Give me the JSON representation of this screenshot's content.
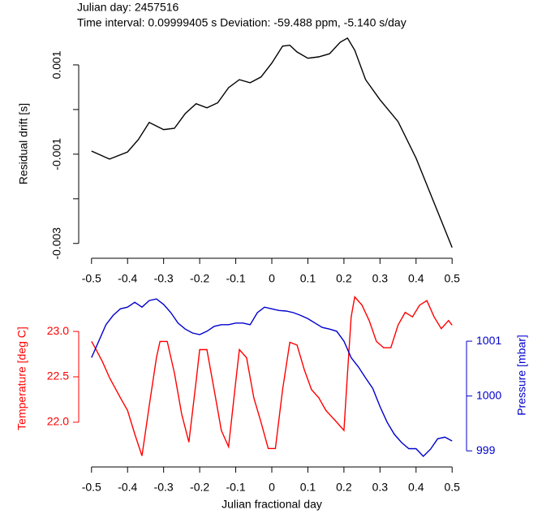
{
  "chart_data": [
    {
      "type": "line",
      "title": "Julian day: 2457516",
      "subtitle": "Time interval: 0.09999405 s   Deviation: -59.488 ppm, -5.140 s/day",
      "ylabel": "Residual drift [s]",
      "xlim": [
        -0.54,
        0.54
      ],
      "xticks": [
        -0.5,
        -0.4,
        -0.3,
        -0.2,
        -0.1,
        0,
        0.1,
        0.2,
        0.3,
        0.4,
        0.5
      ],
      "ylim": [
        -0.00315,
        0.00169
      ],
      "yticks": [
        0.001,
        -0.001,
        -0.003
      ],
      "yminor_ticks": [
        0,
        -0.002
      ],
      "series": [
        {
          "color": "#000000",
          "x": [
            -0.5,
            -0.45,
            -0.4,
            -0.37,
            -0.34,
            -0.3,
            -0.27,
            -0.24,
            -0.21,
            -0.18,
            -0.15,
            -0.12,
            -0.09,
            -0.06,
            -0.03,
            0,
            0.03,
            0.05,
            0.07,
            0.1,
            0.13,
            0.16,
            0.19,
            0.21,
            0.23,
            0.26,
            0.3,
            0.35,
            0.4,
            0.45,
            0.5
          ],
          "values": [
            -0.00093,
            -0.00111,
            -0.00095,
            -0.00067,
            -0.00029,
            -0.00045,
            -0.00042,
            -9e-05,
            0.00013,
            4e-05,
            0.00015,
            0.00049,
            0.00067,
            0.0006,
            0.00073,
            0.00104,
            0.00142,
            0.00144,
            0.00129,
            0.00115,
            0.00118,
            0.00125,
            0.00151,
            0.0016,
            0.00133,
            0.00067,
            0.00022,
            -0.00027,
            -0.00109,
            -0.00209,
            -0.00309
          ]
        }
      ]
    },
    {
      "type": "line",
      "xlabel": "Julian fractional day",
      "ylabel": "Temperature [deg C]",
      "y2label": "Pressure [mbar]",
      "xlim": [
        -0.54,
        0.54
      ],
      "xticks": [
        -0.5,
        -0.4,
        -0.3,
        -0.2,
        -0.1,
        0,
        0.1,
        0.2,
        0.3,
        0.4,
        0.5
      ],
      "ylim": [
        21.57,
        23.43
      ],
      "yticks": [
        {
          "value": 22,
          "label": "22.0"
        },
        {
          "value": 22.5,
          "label": "22.5"
        },
        {
          "value": 23,
          "label": "23.0"
        }
      ],
      "y2lim": [
        998.81,
        1001.89
      ],
      "y2ticks": [
        999,
        1000,
        1001
      ],
      "series": [
        {
          "color": "#ff0000",
          "x": [
            -0.5,
            -0.49,
            -0.47,
            -0.45,
            -0.42,
            -0.4,
            -0.38,
            -0.36,
            -0.34,
            -0.32,
            -0.31,
            -0.29,
            -0.27,
            -0.25,
            -0.23,
            -0.21,
            -0.2,
            -0.18,
            -0.16,
            -0.14,
            -0.12,
            -0.1,
            -0.09,
            -0.07,
            -0.05,
            -0.03,
            -0.01,
            0.01,
            0.03,
            0.05,
            0.07,
            0.09,
            0.11,
            0.13,
            0.15,
            0.18,
            0.2,
            0.21,
            0.22,
            0.23,
            0.25,
            0.27,
            0.29,
            0.31,
            0.33,
            0.35,
            0.37,
            0.39,
            0.41,
            0.43,
            0.45,
            0.47,
            0.49,
            0.5
          ],
          "values": [
            22.89,
            22.82,
            22.67,
            22.49,
            22.27,
            22.13,
            21.87,
            21.63,
            22.18,
            22.71,
            22.89,
            22.89,
            22.54,
            22.09,
            21.78,
            22.45,
            22.8,
            22.8,
            22.36,
            21.91,
            21.73,
            22.45,
            22.8,
            22.71,
            22.27,
            22.0,
            21.71,
            21.71,
            22.36,
            22.88,
            22.85,
            22.58,
            22.36,
            22.27,
            22.13,
            22.0,
            21.91,
            22.54,
            23.16,
            23.38,
            23.29,
            23.12,
            22.89,
            22.82,
            22.82,
            23.07,
            23.21,
            23.16,
            23.29,
            23.34,
            23.16,
            23.03,
            23.12,
            23.07
          ]
        },
        {
          "color": "#0000cc",
          "axis": "y2",
          "x": [
            -0.5,
            -0.48,
            -0.46,
            -0.44,
            -0.42,
            -0.4,
            -0.38,
            -0.36,
            -0.34,
            -0.32,
            -0.3,
            -0.28,
            -0.26,
            -0.24,
            -0.22,
            -0.2,
            -0.18,
            -0.16,
            -0.14,
            -0.12,
            -0.1,
            -0.08,
            -0.06,
            -0.04,
            -0.02,
            0,
            0.02,
            0.04,
            0.06,
            0.08,
            0.1,
            0.12,
            0.14,
            0.16,
            0.18,
            0.2,
            0.22,
            0.24,
            0.26,
            0.28,
            0.3,
            0.32,
            0.34,
            0.36,
            0.38,
            0.4,
            0.42,
            0.44,
            0.46,
            0.48,
            0.5
          ],
          "values": [
            1000.7,
            1001.0,
            1001.3,
            1001.47,
            1001.59,
            1001.62,
            1001.71,
            1001.62,
            1001.74,
            1001.77,
            1001.67,
            1001.52,
            1001.33,
            1001.22,
            1001.15,
            1001.12,
            1001.18,
            1001.27,
            1001.3,
            1001.3,
            1001.33,
            1001.33,
            1001.3,
            1001.52,
            1001.62,
            1001.59,
            1001.56,
            1001.55,
            1001.52,
            1001.47,
            1001.41,
            1001.33,
            1001.25,
            1001.22,
            1001.18,
            1001.0,
            1000.7,
            1000.53,
            1000.33,
            1000.14,
            999.81,
            999.52,
            999.3,
            999.15,
            999.04,
            999.04,
            998.9,
            999.03,
            999.22,
            999.25,
            999.18
          ]
        }
      ]
    }
  ]
}
